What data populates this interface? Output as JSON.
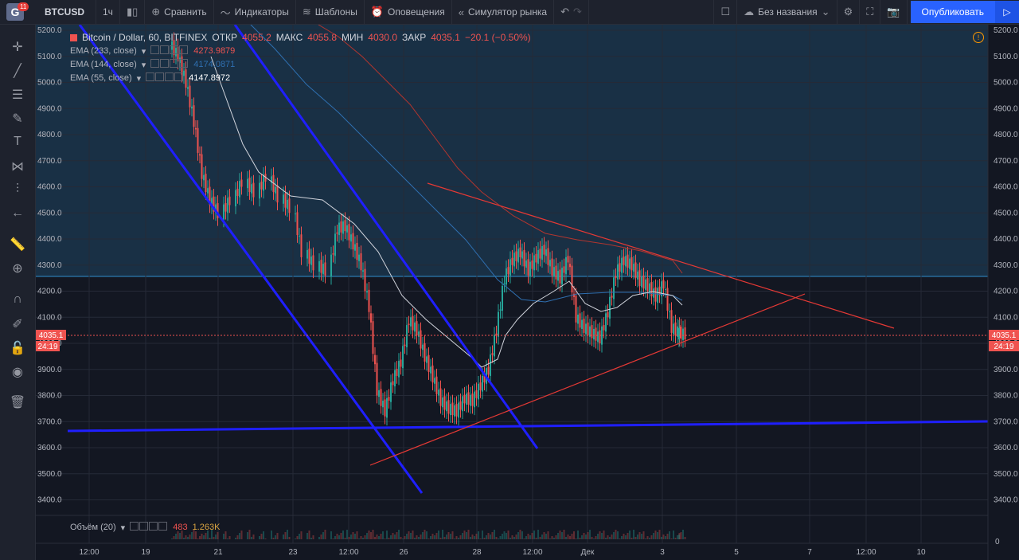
{
  "app": {
    "badge": "11",
    "logo_letter": "G"
  },
  "toolbar": {
    "symbol": "BTCUSD",
    "interval": "1ч",
    "compare": "Сравнить",
    "indicators": "Индикаторы",
    "templates": "Шаблоны",
    "alerts": "Оповещения",
    "replay": "Симулятор рынка",
    "layout_name": "Без названия",
    "publish": "Опубликовать"
  },
  "legend": {
    "title": "Bitcoin / Dollar, 60, BITFINEX",
    "open_label": "ОТКР",
    "open": "4055.2",
    "high_label": "МАКС",
    "high": "4055.8",
    "low_label": "МИН",
    "low": "4030.0",
    "close_label": "ЗАКР",
    "close": "4035.1",
    "change": "−20.1 (−0.50%)"
  },
  "indicators": [
    {
      "label": "EMA (233, close)",
      "value": "4273.9879",
      "color": "#ef5350"
    },
    {
      "label": "EMA (144, close)",
      "value": "4174.0871",
      "color": "#2196f3"
    },
    {
      "label": "EMA (55, close)",
      "value": "4147.8972",
      "color": "#ffffff"
    }
  ],
  "volume": {
    "label": "Объём (20)",
    "v1": "483",
    "v2": "1.263K",
    "zero": "0"
  },
  "price_scale": {
    "ticks": [
      "5200.0",
      "5100.0",
      "5000.0",
      "4900.0",
      "4800.0",
      "4700.0",
      "4600.0",
      "4500.0",
      "4400.0",
      "4300.0",
      "4200.0",
      "4100.0",
      "4000.0",
      "3900.0",
      "3800.0",
      "3700.0",
      "3600.0",
      "3500.0",
      "3400.0"
    ],
    "last_price": "4035.1",
    "countdown": "24:19"
  },
  "time_scale": {
    "ticks": [
      "12:00",
      "19",
      "21",
      "23",
      "12:00",
      "26",
      "28",
      "12:00",
      "Дек",
      "3",
      "5",
      "7",
      "12:00",
      "10"
    ]
  },
  "colors": {
    "trendline_blue": "#1f1fff",
    "trendline_red": "#e53935",
    "up": "#26a69a",
    "down": "#ef5350",
    "zone": "#1c3a52"
  }
}
